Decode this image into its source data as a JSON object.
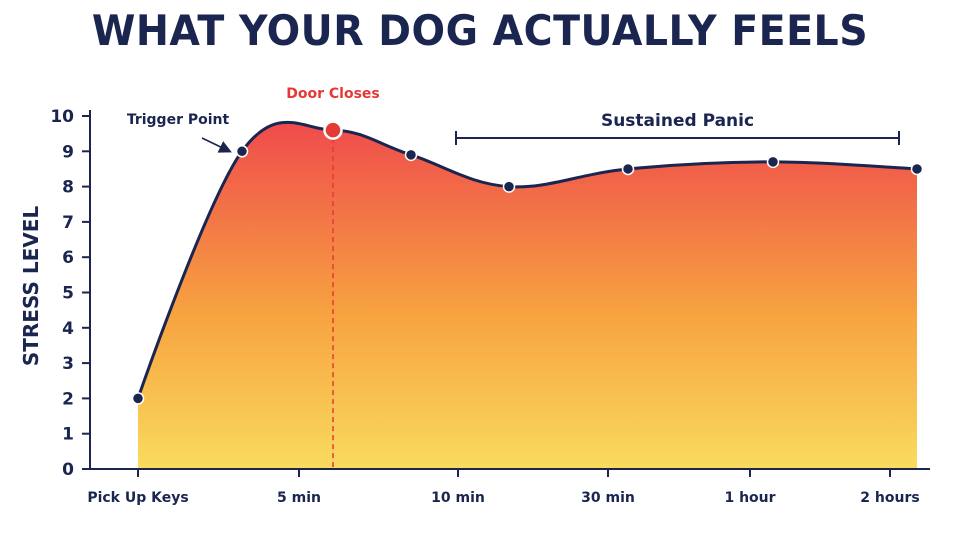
{
  "chart_data": {
    "type": "area",
    "title": "WHAT YOUR DOG ACTUALLY FEELS",
    "ylabel": "STRESS LEVEL",
    "xlabel": "",
    "ylim": [
      0,
      10
    ],
    "yticks": [
      0,
      1,
      2,
      3,
      4,
      5,
      6,
      7,
      8,
      9,
      10
    ],
    "x_tick_labels": [
      "Pick Up Keys",
      "5 min",
      "10 min",
      "30 min",
      "1 hour",
      "2 hours"
    ],
    "grid": false,
    "legend": "none",
    "series": [
      {
        "points": [
          {
            "x": "Pick Up Keys",
            "y": 2
          },
          {
            "x": "between Pick Up Keys and 5 min",
            "y": 9
          },
          {
            "x": "between 5 min and 10 min",
            "y": 9.6
          },
          {
            "x": "between 5 min and 10 min",
            "y": 8.9
          },
          {
            "x": "between 10 min and 30 min",
            "y": 8
          },
          {
            "x": "30 min",
            "y": 8.5
          },
          {
            "x": "1 hour",
            "y": 8.7
          },
          {
            "x": "2 hours",
            "y": 8.5
          }
        ]
      }
    ],
    "annotations": {
      "trigger_point": "Trigger Point",
      "door_closes": "Door Closes",
      "sustained_panic": "Sustained Panic"
    },
    "colors": {
      "line": "#1a2550",
      "fill_top": "#ef4b4c",
      "fill_mid": "#f7a240",
      "fill_bottom": "#f9db5e",
      "highlight": "#e53935",
      "text": "#1a2550"
    }
  }
}
